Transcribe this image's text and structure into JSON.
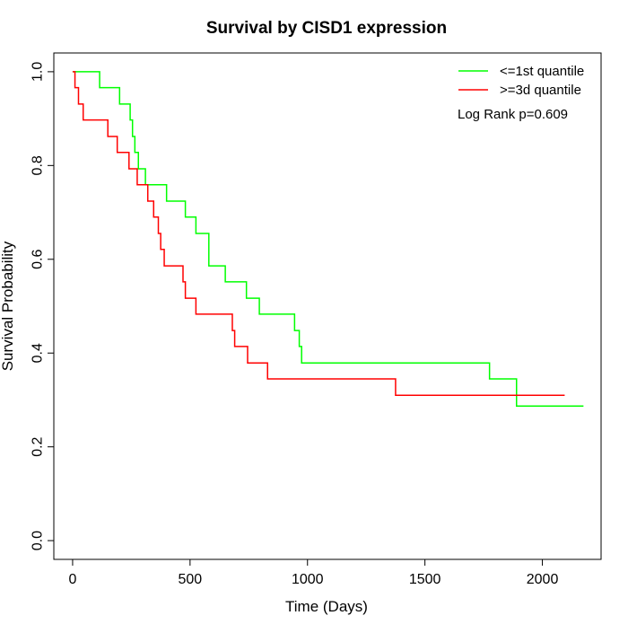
{
  "chart_data": {
    "type": "line",
    "title": "Survival by CISD1 expression",
    "xlabel": "Time (Days)",
    "ylabel": "Survival Probability",
    "xlim": [
      -80,
      2250
    ],
    "ylim": [
      -0.04,
      1.04
    ],
    "x_ticks": [
      0,
      500,
      1000,
      1500,
      2000
    ],
    "y_ticks": [
      0.0,
      0.2,
      0.4,
      0.6,
      0.8,
      1.0
    ],
    "x_tick_labels": [
      "0",
      "500",
      "1000",
      "1500",
      "2000"
    ],
    "y_tick_labels": [
      "0.0",
      "0.2",
      "0.4",
      "0.6",
      "0.8",
      "1.0"
    ],
    "legend": {
      "position": "top-right"
    },
    "annotation": "Log Rank p=0.609",
    "grid": false,
    "step_style": "post",
    "series": [
      {
        "name": "<=1st quantile",
        "color": "#00ff00",
        "x": [
          0,
          115,
          200,
          245,
          255,
          265,
          280,
          310,
          400,
          480,
          525,
          580,
          650,
          740,
          795,
          945,
          965,
          975,
          1775,
          1890,
          2175
        ],
        "y": [
          1.0,
          0.966,
          0.931,
          0.897,
          0.862,
          0.828,
          0.793,
          0.759,
          0.724,
          0.69,
          0.655,
          0.586,
          0.552,
          0.517,
          0.483,
          0.448,
          0.414,
          0.379,
          0.345,
          0.287,
          0.287
        ]
      },
      {
        "name": ">=3d quantile",
        "color": "#ff0000",
        "x": [
          0,
          10,
          25,
          45,
          150,
          190,
          240,
          275,
          320,
          345,
          365,
          375,
          390,
          470,
          480,
          525,
          680,
          690,
          745,
          830,
          1375,
          2095
        ],
        "y": [
          1.0,
          0.966,
          0.931,
          0.897,
          0.862,
          0.828,
          0.793,
          0.759,
          0.724,
          0.69,
          0.655,
          0.621,
          0.586,
          0.552,
          0.517,
          0.483,
          0.448,
          0.414,
          0.379,
          0.345,
          0.31,
          0.31
        ]
      }
    ]
  }
}
